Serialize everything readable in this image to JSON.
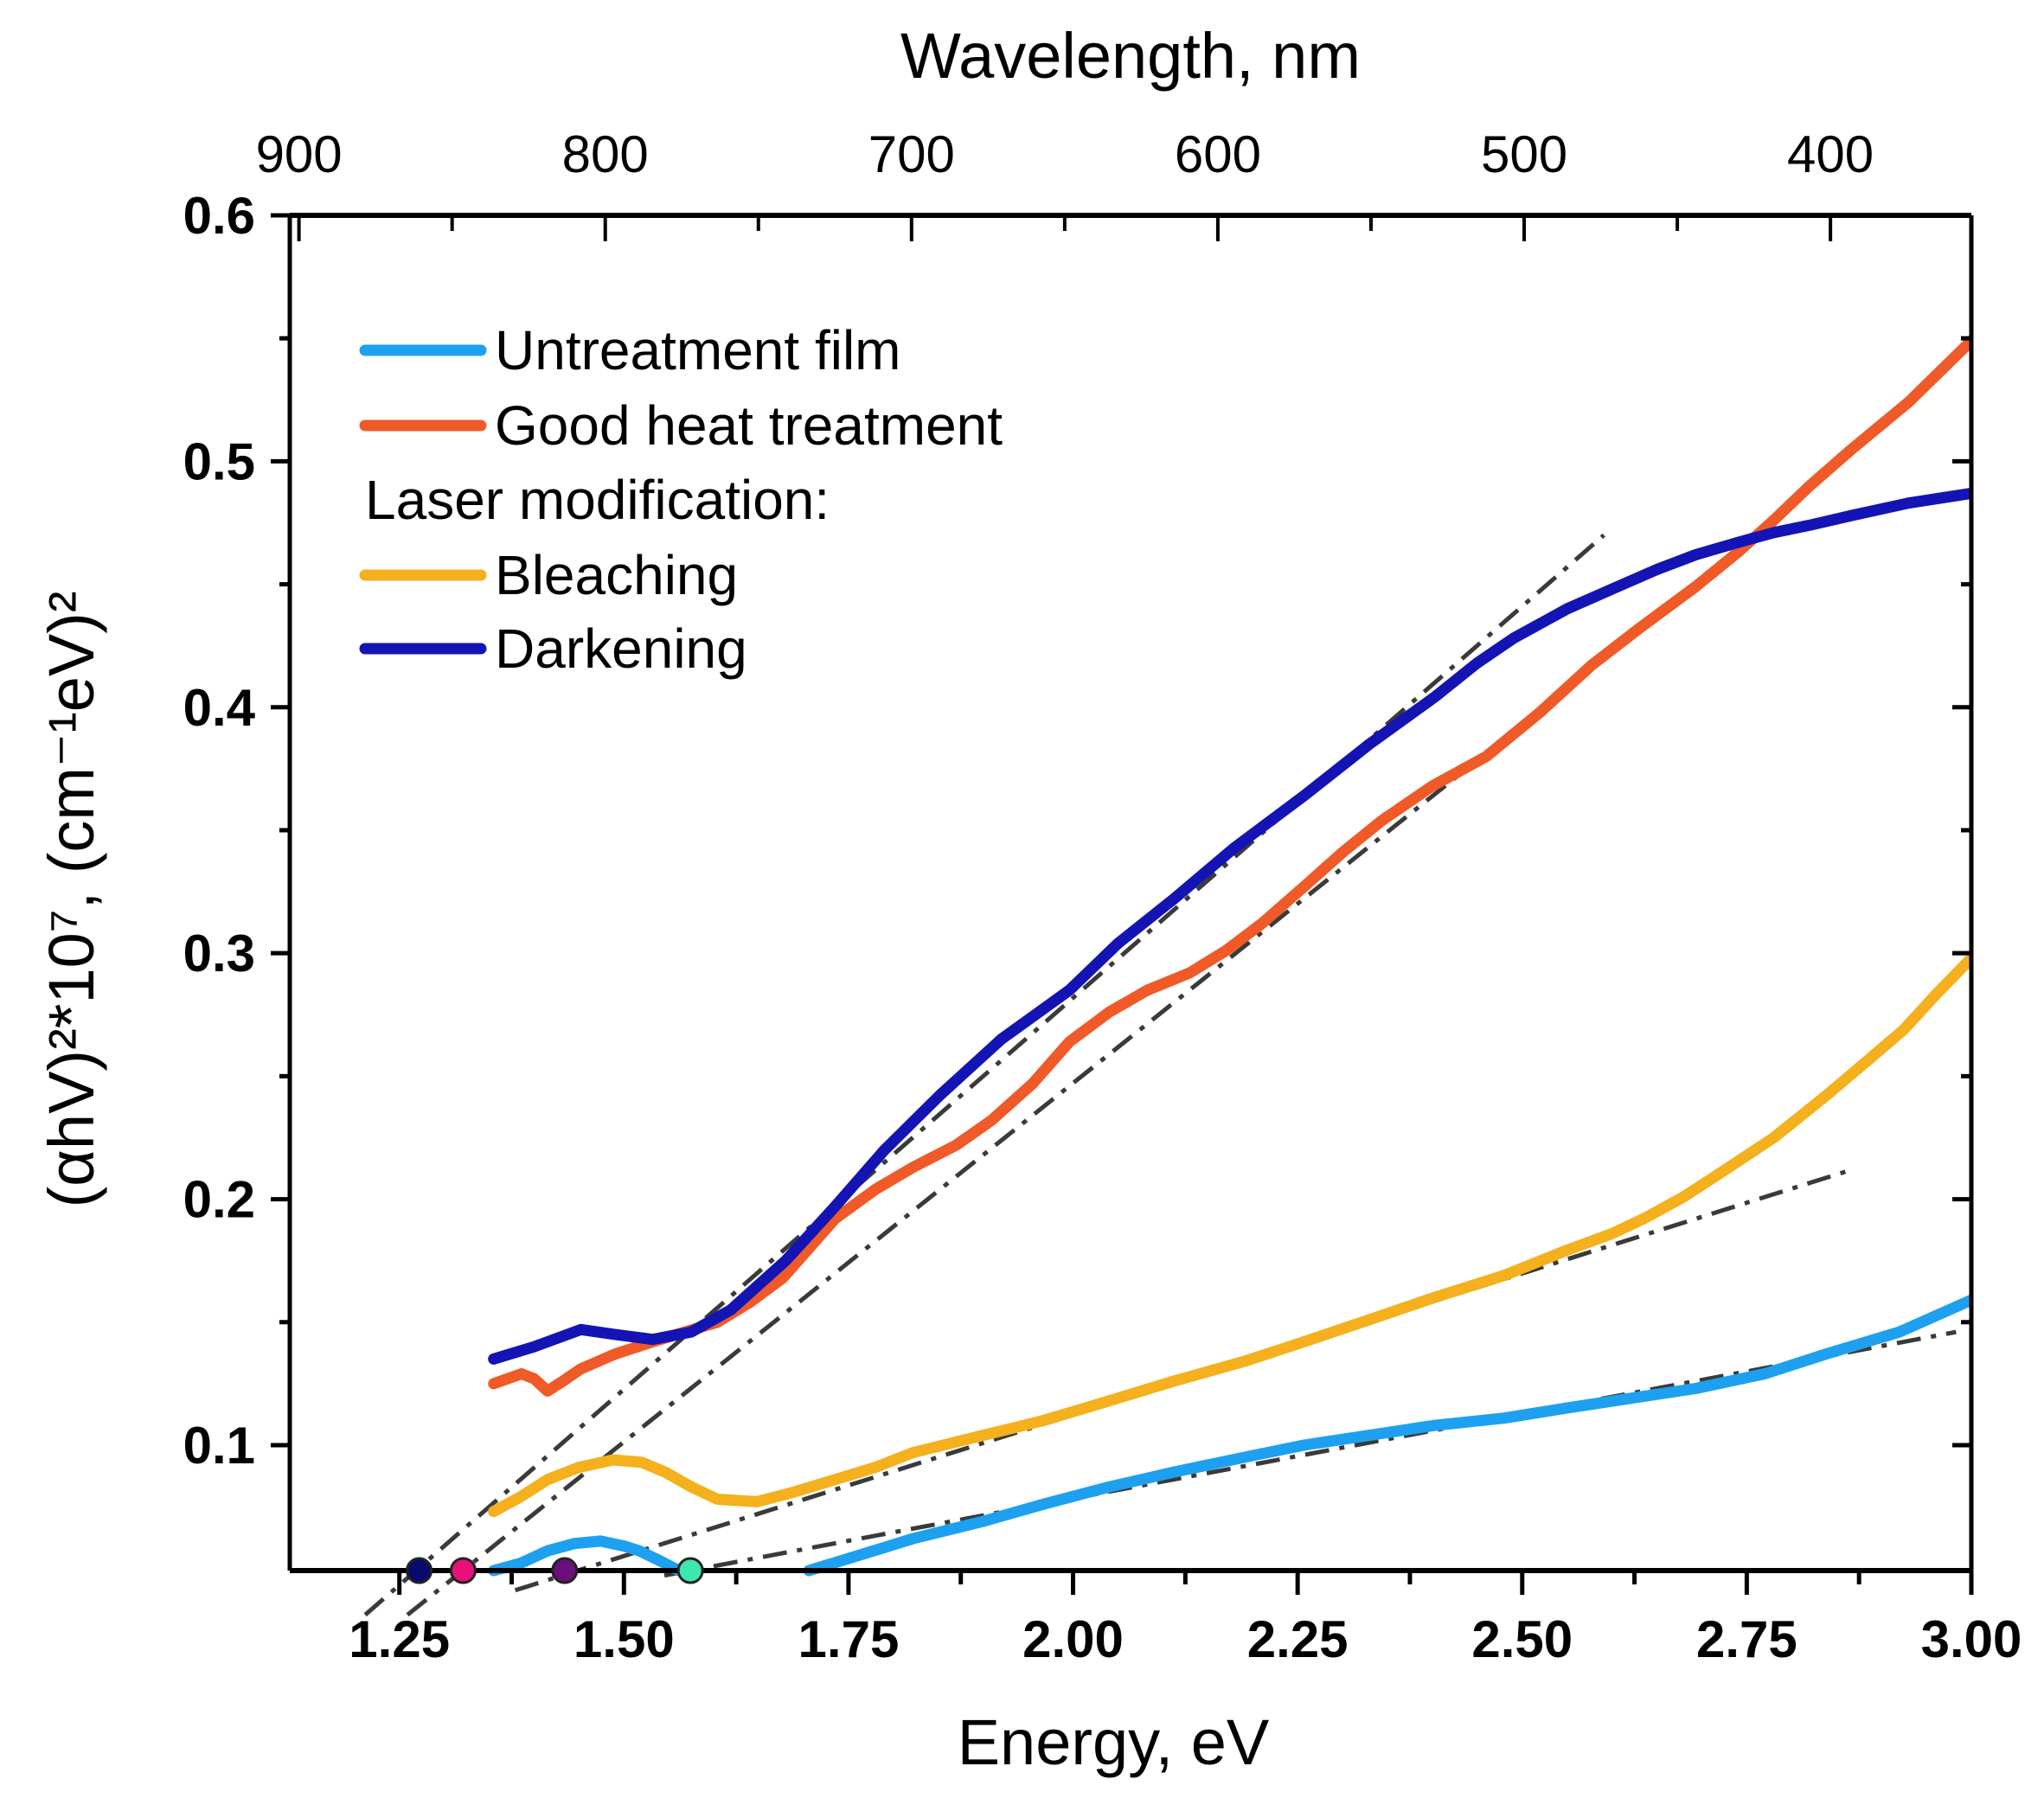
{
  "chart_data": {
    "type": "line",
    "xlabel": "Energy, eV",
    "ylabel": "(αhV)²*10⁷, (cm⁻¹eV)²",
    "x2label": "Wavelength, nm",
    "xlim": [
      1.128,
      3.0
    ],
    "ylim": [
      0.049,
      0.6
    ],
    "x2lim": [
      903,
      354
    ],
    "xticks": [
      "1.25",
      "1.50",
      "1.75",
      "2.00",
      "2.25",
      "2.50",
      "2.75",
      "3.00"
    ],
    "yticks": [
      "0.1",
      "0.2",
      "0.3",
      "0.4",
      "0.5",
      "0.6"
    ],
    "x2ticks": [
      "900",
      "800",
      "700",
      "600",
      "500",
      "400"
    ],
    "legend_placement": "top-left",
    "legend_subheading": "Laser modification:",
    "series": [
      {
        "name": "Untreatment film",
        "color": "#1ea0f0",
        "segments": [
          [
            [
              1.355,
              0.049
            ],
            [
              1.385,
              0.052
            ],
            [
              1.415,
              0.057
            ],
            [
              1.445,
              0.06
            ],
            [
              1.474,
              0.061
            ],
            [
              1.5,
              0.059
            ],
            [
              1.517,
              0.057
            ],
            [
              1.54,
              0.053
            ],
            [
              1.561,
              0.049
            ]
          ],
          [
            [
              1.706,
              0.049
            ],
            [
              1.76,
              0.055
            ],
            [
              1.822,
              0.062
            ],
            [
              1.9,
              0.069
            ],
            [
              1.967,
              0.076
            ],
            [
              2.04,
              0.083
            ],
            [
              2.112,
              0.089
            ],
            [
              2.19,
              0.095
            ],
            [
              2.257,
              0.1
            ],
            [
              2.33,
              0.104
            ],
            [
              2.402,
              0.108
            ],
            [
              2.48,
              0.111
            ],
            [
              2.548,
              0.115
            ],
            [
              2.62,
              0.119
            ],
            [
              2.693,
              0.123
            ],
            [
              2.77,
              0.129
            ],
            [
              2.838,
              0.137
            ],
            [
              2.92,
              0.146
            ],
            [
              3.0,
              0.159
            ]
          ]
        ]
      },
      {
        "name": "Good heat treatment",
        "color": "#f05a28",
        "segments": [
          [
            [
              1.355,
              0.125
            ],
            [
              1.386,
              0.129
            ],
            [
              1.4,
              0.127
            ],
            [
              1.415,
              0.122
            ],
            [
              1.432,
              0.126
            ],
            [
              1.452,
              0.131
            ],
            [
              1.49,
              0.137
            ],
            [
              1.532,
              0.142
            ],
            [
              1.604,
              0.15
            ],
            [
              1.64,
              0.158
            ],
            [
              1.677,
              0.168
            ],
            [
              1.735,
              0.192
            ],
            [
              1.78,
              0.204
            ],
            [
              1.822,
              0.213
            ],
            [
              1.87,
              0.222
            ],
            [
              1.909,
              0.232
            ],
            [
              1.955,
              0.247
            ],
            [
              1.996,
              0.264
            ],
            [
              2.04,
              0.276
            ],
            [
              2.083,
              0.285
            ],
            [
              2.13,
              0.292
            ],
            [
              2.17,
              0.301
            ],
            [
              2.21,
              0.312
            ],
            [
              2.257,
              0.327
            ],
            [
              2.3,
              0.341
            ],
            [
              2.344,
              0.354
            ],
            [
              2.4,
              0.368
            ],
            [
              2.46,
              0.38
            ],
            [
              2.52,
              0.398
            ],
            [
              2.577,
              0.417
            ],
            [
              2.63,
              0.432
            ],
            [
              2.693,
              0.449
            ],
            [
              2.74,
              0.463
            ],
            [
              2.78,
              0.476
            ],
            [
              2.82,
              0.49
            ],
            [
              2.867,
              0.505
            ],
            [
              2.93,
              0.524
            ],
            [
              3.0,
              0.549
            ]
          ]
        ]
      },
      {
        "name": "Bleaching",
        "color": "#f5b01e",
        "segments": [
          [
            [
              1.355,
              0.073
            ],
            [
              1.385,
              0.079
            ],
            [
              1.415,
              0.086
            ],
            [
              1.45,
              0.091
            ],
            [
              1.488,
              0.094
            ],
            [
              1.52,
              0.093
            ],
            [
              1.546,
              0.089
            ],
            [
              1.575,
              0.083
            ],
            [
              1.604,
              0.078
            ],
            [
              1.648,
              0.077
            ],
            [
              1.69,
              0.081
            ],
            [
              1.735,
              0.086
            ],
            [
              1.78,
              0.091
            ],
            [
              1.822,
              0.097
            ],
            [
              1.9,
              0.104
            ],
            [
              1.967,
              0.11
            ],
            [
              2.04,
              0.118
            ],
            [
              2.112,
              0.126
            ],
            [
              2.19,
              0.134
            ],
            [
              2.257,
              0.142
            ],
            [
              2.33,
              0.151
            ],
            [
              2.402,
              0.16
            ],
            [
              2.48,
              0.169
            ],
            [
              2.548,
              0.179
            ],
            [
              2.6,
              0.186
            ],
            [
              2.635,
              0.192
            ],
            [
              2.68,
              0.201
            ],
            [
              2.722,
              0.211
            ],
            [
              2.78,
              0.225
            ],
            [
              2.838,
              0.242
            ],
            [
              2.88,
              0.255
            ],
            [
              2.925,
              0.269
            ],
            [
              2.96,
              0.283
            ],
            [
              3.0,
              0.298
            ]
          ]
        ]
      },
      {
        "name": "Darkening",
        "color": "#1414b4",
        "segments": [
          [
            [
              1.355,
              0.135
            ],
            [
              1.4,
              0.14
            ],
            [
              1.452,
              0.147
            ],
            [
              1.49,
              0.145
            ],
            [
              1.532,
              0.143
            ],
            [
              1.575,
              0.146
            ],
            [
              1.619,
              0.155
            ],
            [
              1.68,
              0.175
            ],
            [
              1.735,
              0.197
            ],
            [
              1.79,
              0.22
            ],
            [
              1.851,
              0.242
            ],
            [
              1.92,
              0.265
            ],
            [
              1.996,
              0.285
            ],
            [
              2.05,
              0.304
            ],
            [
              2.112,
              0.322
            ],
            [
              2.18,
              0.343
            ],
            [
              2.257,
              0.364
            ],
            [
              2.33,
              0.385
            ],
            [
              2.402,
              0.404
            ],
            [
              2.45,
              0.418
            ],
            [
              2.49,
              0.428
            ],
            [
              2.55,
              0.44
            ],
            [
              2.606,
              0.449
            ],
            [
              2.65,
              0.456
            ],
            [
              2.693,
              0.462
            ],
            [
              2.74,
              0.467
            ],
            [
              2.78,
              0.471
            ],
            [
              2.82,
              0.474
            ],
            [
              2.867,
              0.478
            ],
            [
              2.93,
              0.483
            ],
            [
              3.0,
              0.487
            ]
          ]
        ]
      }
    ],
    "fit_lines": [
      {
        "name": "darkening-fit",
        "from": [
          1.212,
          0.031
        ],
        "to": [
          2.591,
          0.47
        ]
      },
      {
        "name": "heat-treatment-fit",
        "from": [
          1.259,
          0.031
        ],
        "to": [
          2.75,
          0.466
        ]
      },
      {
        "name": "bleaching-fit",
        "from": [
          1.379,
          0.041
        ],
        "to": [
          2.867,
          0.212
        ]
      },
      {
        "name": "untreatment-fit",
        "from": [
          1.545,
          0.047
        ],
        "to": [
          2.983,
          0.146
        ]
      }
    ],
    "intercepts": [
      {
        "name": "darkening-intercept",
        "x": 1.272,
        "color": "#0a0a6e"
      },
      {
        "name": "heat-treatment-intercept",
        "x": 1.321,
        "color": "#e8117a"
      },
      {
        "name": "bleaching-intercept",
        "x": 1.434,
        "color": "#6b0f7a"
      },
      {
        "name": "untreatment-intercept",
        "x": 1.574,
        "color": "#3de8b0"
      }
    ]
  }
}
